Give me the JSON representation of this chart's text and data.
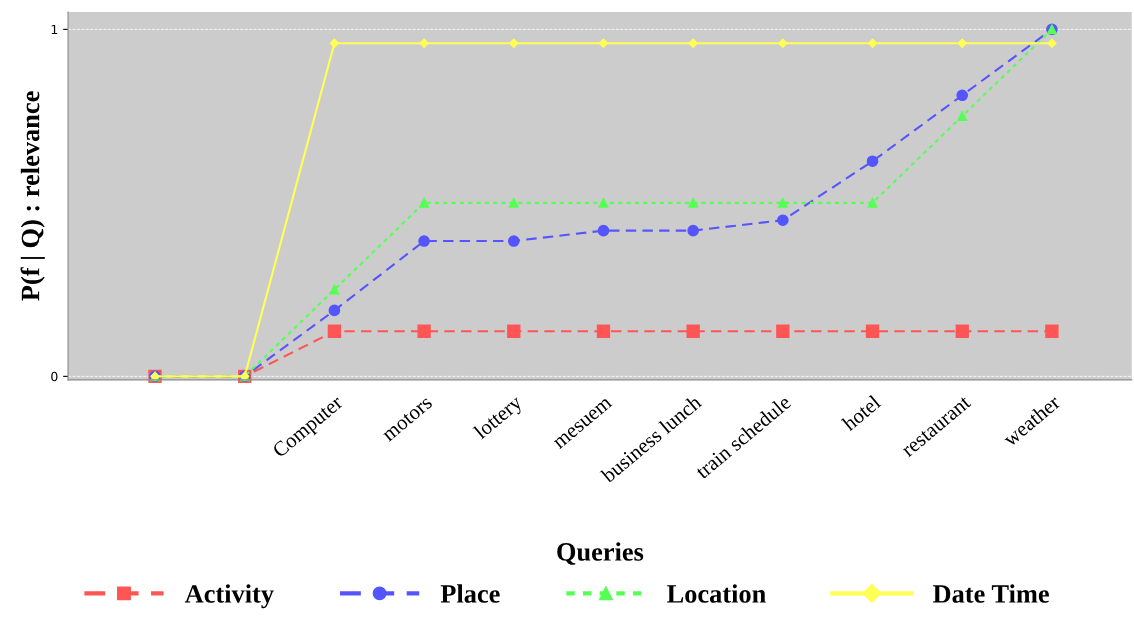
{
  "chart_data": {
    "type": "line",
    "xlabel": "Queries",
    "ylabel": "P(f | Q) : relevance",
    "categories": [
      null,
      null,
      "Computer",
      "motors",
      "lottery",
      "mesuem",
      "business lunch",
      "train schedule",
      "hotel",
      "restaurant",
      "weather"
    ],
    "series": [
      {
        "name": "Activity",
        "color": "#ff5555",
        "marker": "square",
        "line_style": "dashed",
        "values": [
          0,
          0,
          0.13,
          0.13,
          0.13,
          0.13,
          0.13,
          0.13,
          0.13,
          0.13,
          0.13
        ]
      },
      {
        "name": "Place",
        "color": "#5555ff",
        "marker": "circle",
        "line_style": "dashed",
        "values": [
          0,
          0,
          0.19,
          0.39,
          0.39,
          0.42,
          0.42,
          0.45,
          0.62,
          0.81,
          1
        ]
      },
      {
        "name": "Location",
        "color": "#55ff55",
        "marker": "triangle",
        "line_style": "dotted",
        "values": [
          0,
          0,
          0.25,
          0.5,
          0.5,
          0.5,
          0.5,
          0.5,
          0.5,
          0.75,
          1
        ]
      },
      {
        "name": "Date Time",
        "color": "#ffff55",
        "marker": "diamond",
        "line_style": "solid",
        "values": [
          0,
          0,
          0.96,
          0.96,
          0.96,
          0.96,
          0.96,
          0.96,
          0.96,
          0.96,
          0.96
        ]
      }
    ],
    "ylim": [
      -0.01,
      1.05
    ],
    "yticks": [
      0,
      1
    ],
    "grid": "y",
    "legend": "bottom"
  }
}
